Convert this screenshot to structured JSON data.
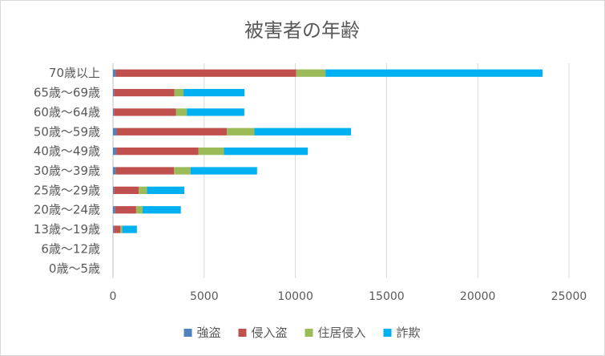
{
  "chart_data": {
    "type": "bar",
    "orientation": "horizontal",
    "stacked": true,
    "title": "被害者の年齢",
    "xlabel": "",
    "ylabel": "",
    "xlim": [
      0,
      25000
    ],
    "xticks": [
      "0",
      "5000",
      "10000",
      "15000",
      "20000",
      "25000"
    ],
    "grid": "vertical",
    "legend": "bottom",
    "categories": [
      "70歳以上",
      "65歳〜69歳",
      "60歳〜64歳",
      "50歳〜59歳",
      "40歳〜49歳",
      "30歳〜39歳",
      "25歳〜29歳",
      "20歳〜24歳",
      "13歳〜19歳",
      "6歳〜12歳",
      "0歳〜5歳"
    ],
    "series": [
      {
        "name": "強盗",
        "color": "#4F81BD",
        "values": [
          150,
          60,
          50,
          200,
          180,
          150,
          60,
          120,
          60,
          0,
          0
        ]
      },
      {
        "name": "侵入盗",
        "color": "#C0504D",
        "values": [
          9900,
          3300,
          3400,
          6050,
          4500,
          3200,
          1350,
          1150,
          350,
          0,
          0
        ]
      },
      {
        "name": "住居侵入",
        "color": "#9BBB59",
        "values": [
          1600,
          500,
          600,
          1500,
          1400,
          900,
          450,
          350,
          100,
          0,
          0
        ]
      },
      {
        "name": "詐欺",
        "color": "#00B0F0",
        "values": [
          11900,
          3350,
          3150,
          5300,
          4600,
          3650,
          2050,
          2100,
          800,
          0,
          0
        ]
      }
    ]
  }
}
